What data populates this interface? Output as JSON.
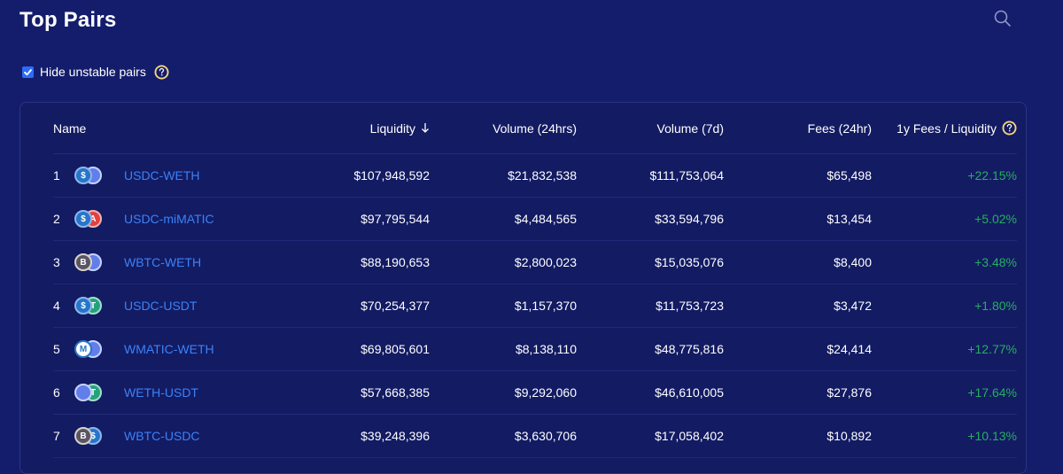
{
  "page": {
    "title": "Top Pairs",
    "filter_label": "Hide unstable pairs",
    "filter_checked": true
  },
  "table": {
    "headers": {
      "name": "Name",
      "liquidity": "Liquidity",
      "volume_24h": "Volume (24hrs)",
      "volume_7d": "Volume (7d)",
      "fees_24h": "Fees (24hr)",
      "fees_liquidity": "1y Fees / Liquidity"
    },
    "rows": [
      {
        "rank": "1",
        "pair": "USDC-WETH",
        "liquidity": "$107,948,592",
        "volume_24h": "$21,832,538",
        "volume_7d": "$111,753,064",
        "fees_24h": "$65,498",
        "fees_liquidity": "+22.15%"
      },
      {
        "rank": "2",
        "pair": "USDC-miMATIC",
        "liquidity": "$97,795,544",
        "volume_24h": "$4,484,565",
        "volume_7d": "$33,594,796",
        "fees_24h": "$13,454",
        "fees_liquidity": "+5.02%"
      },
      {
        "rank": "3",
        "pair": "WBTC-WETH",
        "liquidity": "$88,190,653",
        "volume_24h": "$2,800,023",
        "volume_7d": "$15,035,076",
        "fees_24h": "$8,400",
        "fees_liquidity": "+3.48%"
      },
      {
        "rank": "4",
        "pair": "USDC-USDT",
        "liquidity": "$70,254,377",
        "volume_24h": "$1,157,370",
        "volume_7d": "$11,753,723",
        "fees_24h": "$3,472",
        "fees_liquidity": "+1.80%"
      },
      {
        "rank": "5",
        "pair": "WMATIC-WETH",
        "liquidity": "$69,805,601",
        "volume_24h": "$8,138,110",
        "volume_7d": "$48,775,816",
        "fees_24h": "$24,414",
        "fees_liquidity": "+12.77%"
      },
      {
        "rank": "6",
        "pair": "WETH-USDT",
        "liquidity": "$57,668,385",
        "volume_24h": "$9,292,060",
        "volume_7d": "$46,610,005",
        "fees_24h": "$27,876",
        "fees_liquidity": "+17.64%"
      },
      {
        "rank": "7",
        "pair": "WBTC-USDC",
        "liquidity": "$39,248,396",
        "volume_24h": "$3,630,706",
        "volume_7d": "$17,058,402",
        "fees_24h": "$10,892",
        "fees_liquidity": "+10.13%"
      }
    ]
  },
  "token_icons": {
    "USDC": {
      "glyph": "$",
      "bg": "#2775ca",
      "ring": "#8fb6ea"
    },
    "WETH": {
      "glyph": "",
      "bg": "#627eea",
      "ring": "#c7d2ff"
    },
    "miMATIC": {
      "glyph": "A",
      "bg": "#e3403f",
      "ring": "#f4b3b3"
    },
    "WBTC": {
      "glyph": "B",
      "bg": "#5a5564",
      "ring": "#d9d3c7"
    },
    "USDT": {
      "glyph": "T",
      "bg": "#26a17b",
      "ring": "#9fe0cc"
    },
    "WMATIC": {
      "glyph": "M",
      "bg": "#ffffff",
      "ring": "#2775ca"
    }
  },
  "colors": {
    "background": "#141d6b",
    "card": "#131b63",
    "link": "#3b82f6",
    "positive": "#27ae60",
    "checkbox": "#2f6cf6"
  },
  "icons": {
    "search": "search-icon",
    "help": "help-icon",
    "sort": "arrow-down-icon",
    "check": "check-icon"
  }
}
